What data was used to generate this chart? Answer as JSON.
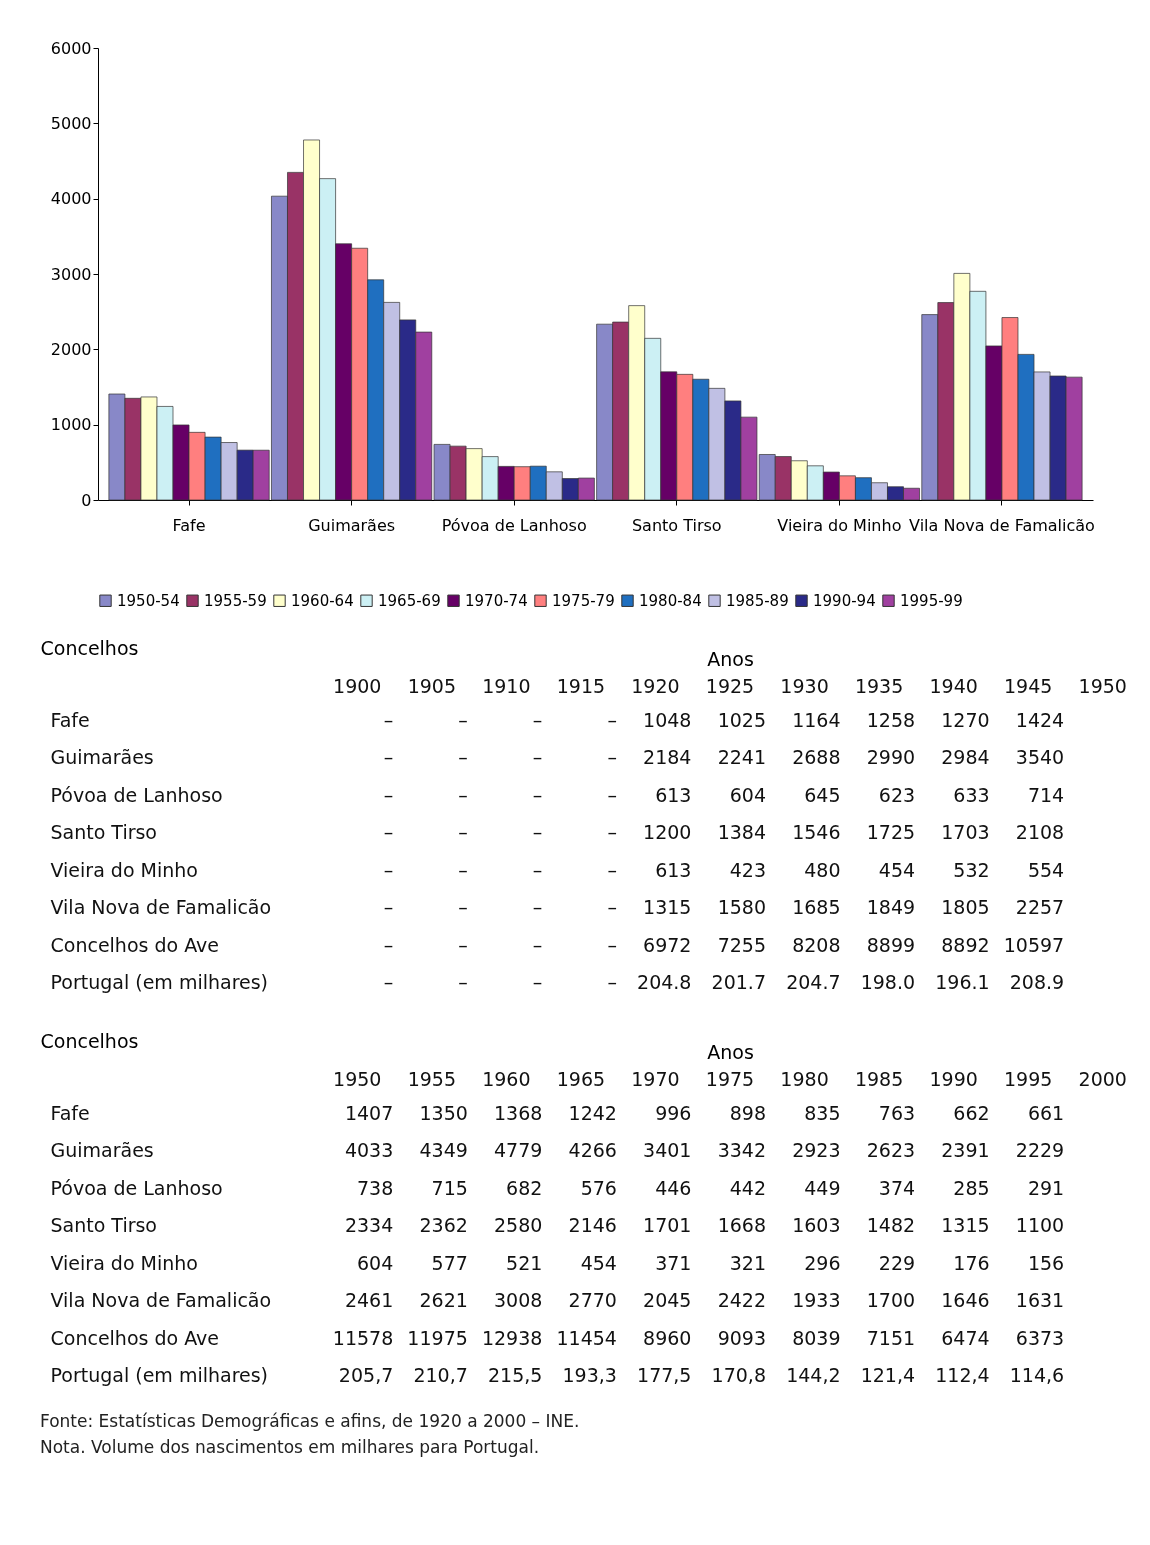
{
  "chart_data": [
    {
      "type": "bar",
      "categories": [
        "Fafe",
        "Guimarães",
        "Póvoa de Lanhoso",
        "Santo Tirso",
        "Vieira do Minho",
        "Vila Nova de Famalicão"
      ],
      "ylim": [
        0,
        6000
      ],
      "yticks": [
        0,
        {
          "value": 1000,
          "label": "1000"
        },
        {
          "value": 2000,
          "label": "2000"
        },
        {
          "value": 3000,
          "label": "3000"
        },
        {
          "value": 4000,
          "label": "4000"
        },
        {
          "value": 5000,
          "label": "5000"
        },
        {
          "value": 6000,
          "label": "6000"
        }
      ],
      "legend": "bottom",
      "series": [
        {
          "name": "1950-54",
          "color": "#8888c8",
          "values": [
            1407,
            4033,
            738,
            2334,
            604,
            2461
          ]
        },
        {
          "name": "1955-59",
          "color": "#993366",
          "values": [
            1350,
            4349,
            715,
            2362,
            577,
            2621
          ]
        },
        {
          "name": "1960-64",
          "color": "#ffffcc",
          "values": [
            1368,
            4779,
            682,
            2580,
            521,
            3008
          ]
        },
        {
          "name": "1965-69",
          "color": "#ccf0f4",
          "values": [
            1242,
            4266,
            576,
            2146,
            454,
            2770
          ]
        },
        {
          "name": "1970-74",
          "color": "#660066",
          "values": [
            996,
            3401,
            446,
            1701,
            371,
            2045
          ]
        },
        {
          "name": "1975-79",
          "color": "#ff7f7f",
          "values": [
            898,
            3342,
            442,
            1668,
            321,
            2422
          ]
        },
        {
          "name": "1980-84",
          "color": "#1f6fc0",
          "values": [
            835,
            2923,
            449,
            1603,
            296,
            1933
          ]
        },
        {
          "name": "1985-89",
          "color": "#c0c0e4",
          "values": [
            763,
            2623,
            374,
            1482,
            229,
            1700
          ]
        },
        {
          "name": "1990-94",
          "color": "#2a2a88",
          "values": [
            662,
            2391,
            285,
            1315,
            176,
            1646
          ]
        },
        {
          "name": "1995-99",
          "color": "#a040a0",
          "values": [
            661,
            2229,
            291,
            1100,
            156,
            1631
          ]
        }
      ]
    },
    {
      "type": "heatmap",
      "xlabel": "Anos",
      "ylabel": "Concelhos",
      "categories": [
        "1900",
        "1905",
        "1910",
        "1915",
        "1920",
        "1925",
        "1930",
        "1935",
        "1940",
        "1945",
        "1950"
      ],
      "y_categories": [
        "Fafe",
        "Guimarães",
        "Póvoa de Lanhoso",
        "Santo Tirso",
        "Vieira do Minho",
        "Vila Nova de Famalicão",
        "Concelhos do Ave",
        "Portugal (em milhares)"
      ],
      "cells": [
        [
          null,
          null,
          null,
          null,
          1048,
          1025,
          1164,
          1258,
          1270,
          1424,
          null
        ],
        [
          null,
          null,
          null,
          null,
          2184,
          2241,
          2688,
          2990,
          2984,
          3540,
          null
        ],
        [
          null,
          null,
          null,
          null,
          613,
          604,
          645,
          623,
          633,
          714,
          null
        ],
        [
          null,
          null,
          null,
          null,
          1200,
          1384,
          1546,
          1725,
          1703,
          2108,
          null
        ],
        [
          null,
          null,
          null,
          null,
          613,
          423,
          480,
          454,
          532,
          554,
          null
        ],
        [
          null,
          null,
          null,
          null,
          1315,
          1580,
          1685,
          1849,
          1805,
          2257,
          null
        ],
        [
          null,
          null,
          null,
          null,
          6972,
          7255,
          8208,
          8899,
          8892,
          10597,
          null
        ],
        [
          null,
          null,
          null,
          null,
          204.8,
          201.7,
          204.7,
          198.0,
          196.1,
          208.9,
          null
        ]
      ],
      "cell_labels": [
        [
          "–",
          "–",
          "–",
          "–",
          "1048",
          "1025",
          "1164",
          "1258",
          "1270",
          "1424",
          null
        ],
        [
          "–",
          "–",
          "–",
          "–",
          "2184",
          "2241",
          "2688",
          "2990",
          "2984",
          "3540",
          null
        ],
        [
          "–",
          "–",
          "–",
          "–",
          "613",
          "604",
          "645",
          "623",
          "633",
          "714",
          null
        ],
        [
          "–",
          "–",
          "–",
          "–",
          "1200",
          "1384",
          "1546",
          "1725",
          "1703",
          "2108",
          null
        ],
        [
          "–",
          "–",
          "–",
          "–",
          "613",
          "423",
          "480",
          "454",
          "532",
          "554",
          null
        ],
        [
          "–",
          "–",
          "–",
          "–",
          "1315",
          "1580",
          "1685",
          "1849",
          "1805",
          "2257",
          null
        ],
        [
          "–",
          "–",
          "–",
          "–",
          "6972",
          "7255",
          "8208",
          "8899",
          "8892",
          "10597",
          null
        ],
        [
          "–",
          "–",
          "–",
          "–",
          "204.8",
          "201.7",
          "204.7",
          "198.0",
          "196.1",
          "208.9",
          null
        ]
      ]
    },
    {
      "type": "heatmap",
      "xlabel": "Anos",
      "ylabel": "Concelhos",
      "categories": [
        "1950",
        "1955",
        "1960",
        "1965",
        "1970",
        "1975",
        "1980",
        "1985",
        "1990",
        "1995",
        "2000"
      ],
      "y_categories": [
        "Fafe",
        "Guimarães",
        "Póvoa de Lanhoso",
        "Santo Tirso",
        "Vieira do Minho",
        "Vila Nova de Famalicão",
        "Concelhos do Ave",
        "Portugal (em milhares)"
      ],
      "cells": [
        [
          1407,
          1350,
          1368,
          1242,
          996,
          898,
          835,
          763,
          662,
          661,
          null
        ],
        [
          4033,
          4349,
          4779,
          4266,
          3401,
          3342,
          2923,
          2623,
          2391,
          2229,
          null
        ],
        [
          738,
          715,
          682,
          576,
          446,
          442,
          449,
          374,
          285,
          291,
          null
        ],
        [
          2334,
          2362,
          2580,
          2146,
          1701,
          1668,
          1603,
          1482,
          1315,
          1100,
          null
        ],
        [
          604,
          577,
          521,
          454,
          371,
          321,
          296,
          229,
          176,
          156,
          null
        ],
        [
          2461,
          2621,
          3008,
          2770,
          2045,
          2422,
          1933,
          1700,
          1646,
          1631,
          null
        ],
        [
          11578,
          11975,
          12938,
          11454,
          8960,
          9093,
          8039,
          7151,
          6474,
          6373,
          null
        ],
        [
          205.7,
          210.7,
          215.5,
          193.3,
          177.5,
          170.8,
          144.2,
          121.4,
          112.4,
          114.6,
          null
        ]
      ],
      "cell_labels": [
        [
          "1407",
          "1350",
          "1368",
          "1242",
          "996",
          "898",
          "835",
          "763",
          "662",
          "661",
          null
        ],
        [
          "4033",
          "4349",
          "4779",
          "4266",
          "3401",
          "3342",
          "2923",
          "2623",
          "2391",
          "2229",
          null
        ],
        [
          "738",
          "715",
          "682",
          "576",
          "446",
          "442",
          "449",
          "374",
          "285",
          "291",
          null
        ],
        [
          "2334",
          "2362",
          "2580",
          "2146",
          "1701",
          "1668",
          "1603",
          "1482",
          "1315",
          "1100",
          null
        ],
        [
          "604",
          "577",
          "521",
          "454",
          "371",
          "321",
          "296",
          "229",
          "176",
          "156",
          null
        ],
        [
          "2461",
          "2621",
          "3008",
          "2770",
          "2045",
          "2422",
          "1933",
          "1700",
          "1646",
          "1631",
          null
        ],
        [
          "11578",
          "11975",
          "12938",
          "11454",
          "8960",
          "9093",
          "8039",
          "7151",
          "6474",
          "6373",
          null
        ],
        [
          "205,7",
          "210,7",
          "215,5",
          "193,3",
          "177,5",
          "170,8",
          "144,2",
          "121,4",
          "112,4",
          "114,6",
          null
        ]
      ],
      "annotations": [
        "Fonte: Estatísticas Demográficas e afins, de 1920 a 2000 – INE.",
        "Nota. Volume dos nascimentos em milhares para Portugal."
      ]
    }
  ]
}
